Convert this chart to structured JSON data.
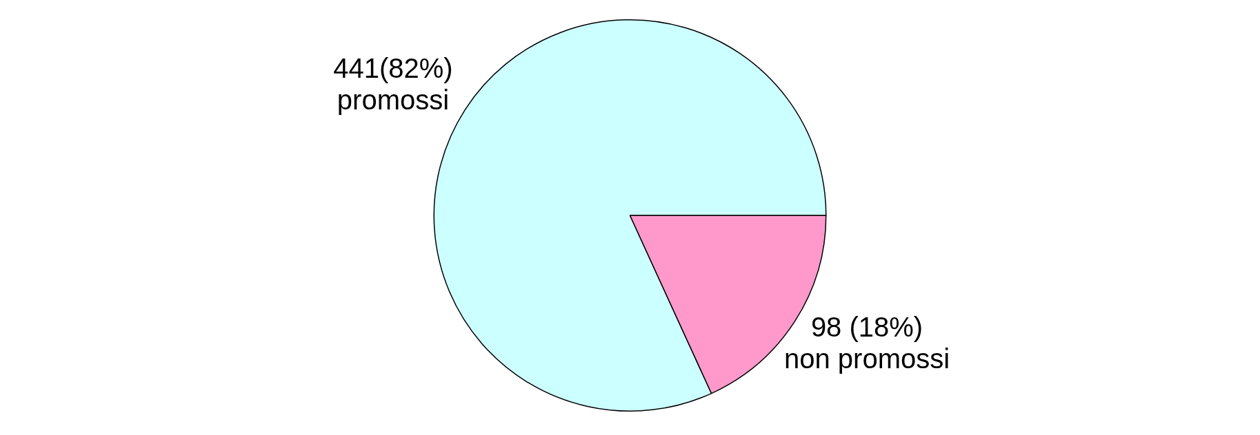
{
  "chart_data": {
    "type": "pie",
    "categories": [
      "promossi",
      "non promossi"
    ],
    "values": [
      441,
      98
    ],
    "value_labels": [
      "441(82%)",
      "98 (18%)"
    ],
    "colors": [
      "#ccffff",
      "#ff99cc"
    ],
    "legend": false
  }
}
